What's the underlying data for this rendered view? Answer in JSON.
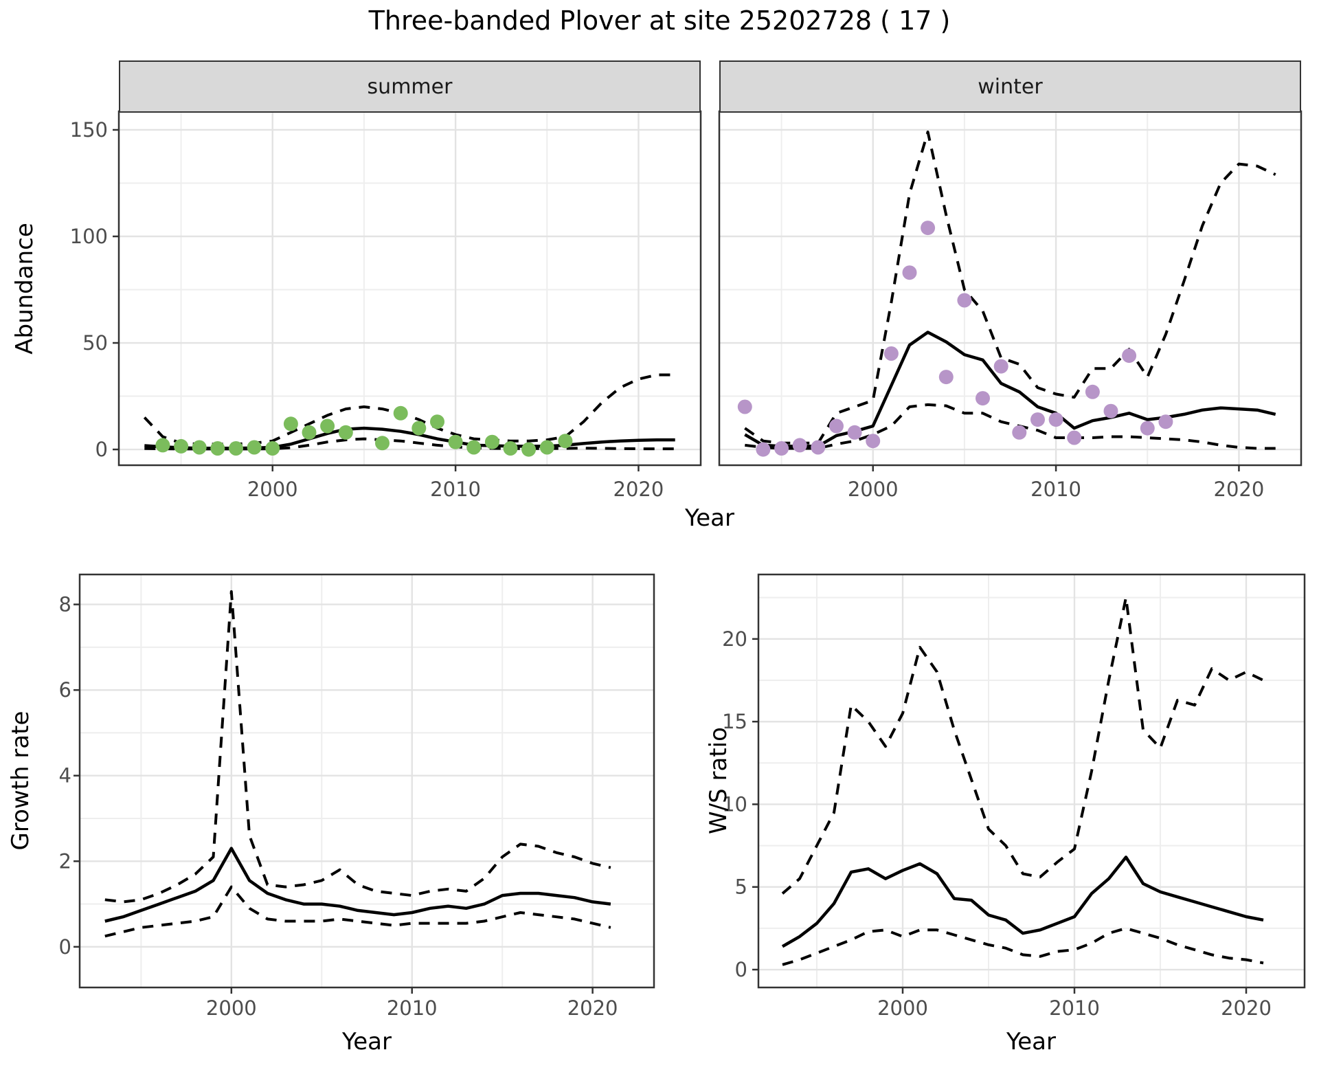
{
  "title": "Three-banded Plover at site 25202728 ( 17 )",
  "facets": {
    "summer": "summer",
    "winter": "winter"
  },
  "axis_titles": {
    "abundance": "Abundance",
    "year": "Year",
    "growth": "Growth rate",
    "ws": "W/S ratio"
  },
  "colors": {
    "summer_point": "#7bbc5c",
    "winter_point": "#b795c8",
    "line": "#000000",
    "strip_bg": "#d9d9d9",
    "panel_border": "#333333",
    "grid_major": "#e3e3e3",
    "grid_minor": "#eeeeee",
    "tick_label": "#4d4d4d"
  },
  "chart_data": [
    {
      "id": "abundance_summer",
      "type": "line",
      "facet": "summer",
      "title": "summer",
      "xlabel": "Year",
      "ylabel": "Abundance",
      "xlim": [
        1991.6,
        2023.4
      ],
      "ylim": [
        -7.4,
        158.7
      ],
      "x_tick_values": [
        2000,
        2010,
        2020
      ],
      "x_tick_labels": [
        "2000",
        "2010",
        "2020"
      ],
      "x_minor": [
        1995,
        2005,
        2015
      ],
      "y_tick_values": [
        0,
        50,
        100,
        150
      ],
      "y_tick_labels": [
        "0",
        "50",
        "100",
        "150"
      ],
      "y_minor": [
        25,
        75,
        125
      ],
      "years": [
        1993,
        1994,
        1995,
        1996,
        1997,
        1998,
        1999,
        2000,
        2001,
        2002,
        2003,
        2004,
        2005,
        2006,
        2007,
        2008,
        2009,
        2010,
        2011,
        2012,
        2013,
        2014,
        2015,
        2016,
        2017,
        2018,
        2019,
        2020,
        2021,
        2022
      ],
      "series": [
        {
          "name": "modelled mean",
          "style": "solid",
          "values": [
            1.8,
            1.2,
            0.8,
            0.6,
            0.6,
            0.6,
            0.7,
            1.0,
            2.5,
            5.0,
            7.5,
            9.5,
            10.0,
            9.5,
            8.5,
            7.0,
            5.0,
            3.5,
            2.0,
            1.8,
            1.5,
            1.5,
            1.5,
            2.0,
            2.8,
            3.5,
            4.0,
            4.3,
            4.5,
            4.5
          ]
        },
        {
          "name": "lower CI",
          "style": "dashed",
          "values": [
            0.4,
            0.3,
            0.2,
            0.2,
            0.2,
            0.2,
            0.2,
            0.3,
            0.8,
            2.0,
            3.5,
            4.5,
            5.0,
            4.5,
            4.0,
            3.0,
            2.0,
            1.2,
            0.7,
            0.5,
            0.4,
            0.4,
            0.4,
            0.5,
            0.6,
            0.5,
            0.4,
            0.3,
            0.3,
            0.3
          ]
        },
        {
          "name": "upper CI",
          "style": "dashed",
          "values": [
            15,
            6,
            3,
            2.5,
            2.5,
            2.5,
            3,
            4,
            8,
            12,
            16,
            19,
            20,
            19,
            17,
            14,
            10,
            7,
            5,
            4.5,
            4,
            4,
            4.5,
            6,
            13,
            22,
            29,
            33,
            35,
            35
          ]
        }
      ],
      "points": {
        "name": "observed summer counts",
        "color_key": "summer_point",
        "years": [
          1994,
          1995,
          1996,
          1997,
          1998,
          1999,
          2000,
          2001,
          2002,
          2003,
          2004,
          2006,
          2007,
          2008,
          2009,
          2010,
          2011,
          2012,
          2013,
          2014,
          2015,
          2016
        ],
        "values": [
          2,
          1.5,
          1,
          0.5,
          0.5,
          1,
          0.5,
          12,
          8,
          11,
          8,
          3,
          17,
          10,
          13,
          3.5,
          1,
          3.5,
          0.5,
          0,
          1,
          4
        ]
      }
    },
    {
      "id": "abundance_winter",
      "type": "line",
      "facet": "winter",
      "title": "winter",
      "xlabel": "Year",
      "ylabel": "Abundance",
      "xlim": [
        1991.6,
        2023.4
      ],
      "ylim": [
        -7.4,
        158.7
      ],
      "x_tick_values": [
        2000,
        2010,
        2020
      ],
      "x_tick_labels": [
        "2000",
        "2010",
        "2020"
      ],
      "x_minor": [
        1995,
        2005,
        2015
      ],
      "y_tick_values": [
        0,
        50,
        100,
        150
      ],
      "y_tick_labels": [],
      "y_minor": [
        25,
        75,
        125
      ],
      "years": [
        1993,
        1994,
        1995,
        1996,
        1997,
        1998,
        1999,
        2000,
        2001,
        2002,
        2003,
        2004,
        2005,
        2006,
        2007,
        2008,
        2009,
        2010,
        2011,
        2012,
        2013,
        2014,
        2015,
        2016,
        2017,
        2018,
        2019,
        2020,
        2021,
        2022
      ],
      "series": [
        {
          "name": "modelled mean",
          "style": "solid",
          "values": [
            7,
            2,
            1.5,
            1.5,
            1.5,
            6.5,
            8.5,
            11,
            30,
            49,
            55,
            50.5,
            44.5,
            42,
            31,
            27,
            20,
            17,
            10,
            13.5,
            15,
            17,
            14,
            15,
            16.5,
            18.5,
            19.5,
            19,
            18.5,
            16.5
          ]
        },
        {
          "name": "lower CI",
          "style": "dashed",
          "values": [
            2,
            1,
            0.5,
            0.5,
            0.5,
            2.5,
            4,
            7,
            11,
            20,
            21,
            20.5,
            17,
            17,
            13,
            11,
            9,
            5.5,
            5.5,
            5.5,
            6,
            6,
            5.5,
            5,
            4.5,
            3.5,
            2,
            1,
            0.5,
            0.5
          ]
        },
        {
          "name": "upper CI",
          "style": "dashed",
          "values": [
            10,
            4,
            3,
            3,
            3,
            17,
            20,
            23,
            69,
            120,
            149,
            110,
            75,
            65,
            43,
            40,
            29,
            26,
            24.5,
            38,
            38,
            47,
            34,
            54,
            79,
            105,
            125,
            134,
            133,
            129
          ]
        }
      ],
      "points": {
        "name": "observed winter counts",
        "color_key": "winter_point",
        "years": [
          1993,
          1994,
          1995,
          1996,
          1997,
          1998,
          1999,
          2000,
          2001,
          2002,
          2003,
          2004,
          2005,
          2006,
          2007,
          2008,
          2009,
          2010,
          2011,
          2012,
          2013,
          2014,
          2015,
          2016
        ],
        "values": [
          20,
          0,
          0.5,
          2,
          1,
          11,
          8,
          4,
          45,
          83,
          104,
          34,
          70,
          24,
          39,
          8,
          14,
          14,
          5.5,
          27,
          18,
          44,
          10,
          13
        ]
      }
    },
    {
      "id": "growth_rate",
      "type": "line",
      "title": "",
      "xlabel": "Year",
      "ylabel": "Growth rate",
      "xlim": [
        1991.6,
        2023.4
      ],
      "ylim": [
        -0.95,
        8.7
      ],
      "x_tick_values": [
        2000,
        2010,
        2020
      ],
      "x_tick_labels": [
        "2000",
        "2010",
        "2020"
      ],
      "x_minor": [
        1995,
        2005,
        2015
      ],
      "y_tick_values": [
        0,
        2,
        4,
        6,
        8
      ],
      "y_tick_labels": [
        "0",
        "2",
        "4",
        "6",
        "8"
      ],
      "y_minor": [
        1,
        3,
        5,
        7
      ],
      "years": [
        1993,
        1994,
        1995,
        1996,
        1997,
        1998,
        1999,
        2000,
        2001,
        2002,
        2003,
        2004,
        2005,
        2006,
        2007,
        2008,
        2009,
        2010,
        2011,
        2012,
        2013,
        2014,
        2015,
        2016,
        2017,
        2018,
        2019,
        2020,
        2021
      ],
      "series": [
        {
          "name": "modelled mean",
          "style": "solid",
          "values": [
            0.6,
            0.7,
            0.85,
            1.0,
            1.15,
            1.3,
            1.55,
            2.3,
            1.55,
            1.25,
            1.1,
            1.0,
            1.0,
            0.95,
            0.85,
            0.8,
            0.75,
            0.8,
            0.9,
            0.95,
            0.9,
            1.0,
            1.2,
            1.25,
            1.25,
            1.2,
            1.15,
            1.05,
            1.0
          ]
        },
        {
          "name": "lower CI",
          "style": "dashed",
          "values": [
            0.25,
            0.35,
            0.45,
            0.5,
            0.55,
            0.6,
            0.7,
            1.4,
            0.9,
            0.65,
            0.6,
            0.6,
            0.6,
            0.65,
            0.6,
            0.55,
            0.5,
            0.55,
            0.55,
            0.55,
            0.55,
            0.6,
            0.7,
            0.8,
            0.75,
            0.7,
            0.65,
            0.55,
            0.45
          ]
        },
        {
          "name": "upper CI",
          "style": "dashed",
          "values": [
            1.1,
            1.05,
            1.1,
            1.25,
            1.45,
            1.7,
            2.1,
            8.3,
            2.6,
            1.45,
            1.4,
            1.45,
            1.55,
            1.8,
            1.45,
            1.3,
            1.25,
            1.2,
            1.3,
            1.35,
            1.3,
            1.6,
            2.1,
            2.4,
            2.35,
            2.2,
            2.1,
            1.95,
            1.85
          ]
        }
      ],
      "points": null
    },
    {
      "id": "ws_ratio",
      "type": "line",
      "title": "",
      "xlabel": "Year",
      "ylabel": "W/S ratio",
      "xlim": [
        1991.6,
        2023.4
      ],
      "ylim": [
        -1.08,
        23.9
      ],
      "x_tick_values": [
        2000,
        2010,
        2020
      ],
      "x_tick_labels": [
        "2000",
        "2010",
        "2020"
      ],
      "x_minor": [
        1995,
        2005,
        2015
      ],
      "y_tick_values": [
        0,
        5,
        10,
        15,
        20
      ],
      "y_tick_labels": [
        "0",
        "5",
        "10",
        "15",
        "20"
      ],
      "y_minor": [
        2.5,
        7.5,
        12.5,
        17.5,
        22.5
      ],
      "years": [
        1993,
        1994,
        1995,
        1996,
        1997,
        1998,
        1999,
        2000,
        2001,
        2002,
        2003,
        2004,
        2005,
        2006,
        2007,
        2008,
        2009,
        2010,
        2011,
        2012,
        2013,
        2014,
        2015,
        2016,
        2017,
        2018,
        2019,
        2020,
        2021
      ],
      "series": [
        {
          "name": "modelled mean",
          "style": "solid",
          "values": [
            1.4,
            2.0,
            2.8,
            4.0,
            5.9,
            6.1,
            5.5,
            6.0,
            6.4,
            5.8,
            4.3,
            4.2,
            3.3,
            3.0,
            2.2,
            2.4,
            2.8,
            3.2,
            4.6,
            5.5,
            6.8,
            5.2,
            4.7,
            4.4,
            4.1,
            3.8,
            3.5,
            3.2,
            3.0
          ]
        },
        {
          "name": "lower CI",
          "style": "dashed",
          "values": [
            0.3,
            0.6,
            1.0,
            1.4,
            1.8,
            2.3,
            2.4,
            2.0,
            2.4,
            2.4,
            2.1,
            1.8,
            1.5,
            1.3,
            0.9,
            0.8,
            1.1,
            1.2,
            1.6,
            2.2,
            2.5,
            2.2,
            1.9,
            1.5,
            1.2,
            0.9,
            0.7,
            0.6,
            0.4
          ]
        },
        {
          "name": "upper CI",
          "style": "dashed",
          "values": [
            4.6,
            5.5,
            7.5,
            9.5,
            16.0,
            15.0,
            13.5,
            15.5,
            19.5,
            18.0,
            14.5,
            11.5,
            8.5,
            7.5,
            5.8,
            5.6,
            6.5,
            7.3,
            12.0,
            17.5,
            22.5,
            14.5,
            13.4,
            16.3,
            16.0,
            18.2,
            17.5,
            18.0,
            17.5
          ]
        }
      ],
      "points": null
    }
  ]
}
